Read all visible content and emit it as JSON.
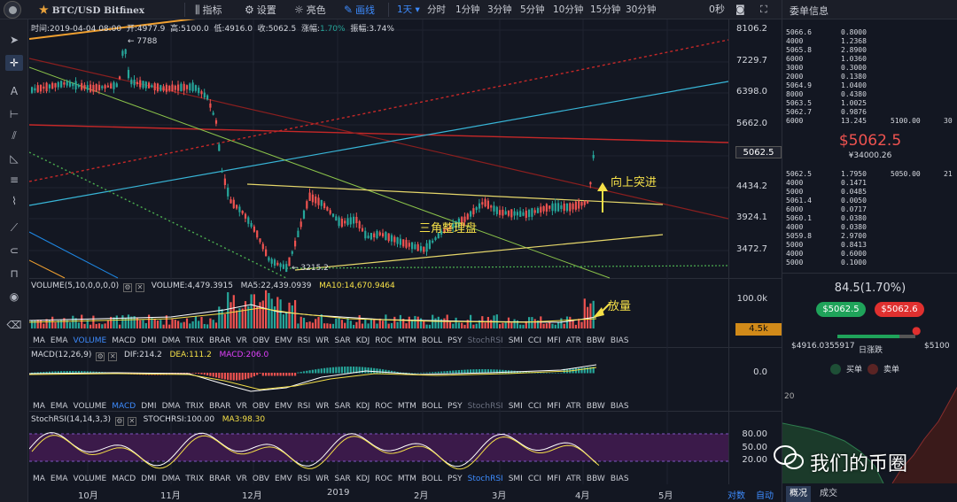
{
  "topbar": {
    "symbol": "BTC/USD Bitfinex",
    "indicators_label": "指标",
    "settings_label": "设置",
    "theme_label": "亮色",
    "draw_label": "画线",
    "timeframes": [
      "1天",
      "分时",
      "1分钟",
      "3分钟",
      "5分钟",
      "10分钟",
      "15分钟",
      "30分钟"
    ],
    "countdown": "0秒"
  },
  "orderbook_title": "委单信息",
  "main_info": {
    "time": "时间:2019-04-04 08:00",
    "open": "开:4977.9",
    "high": "高:5100.0",
    "low": "低:4916.0",
    "close": "收:5062.5",
    "change_label": "涨幅:",
    "change_value": "1.70%",
    "amplitude": "振幅:3.74%"
  },
  "price_axis": [
    "8106.2",
    "7229.7",
    "6398.0",
    "5662.0",
    "4434.2",
    "3924.1",
    "3472.7"
  ],
  "current_price_tag": "5062.5",
  "high_marker": "← 7788",
  "low_marker": "← 3215.2",
  "annotations": {
    "breakout": "向上突进",
    "triangle": "三角整理盘",
    "volume_up": "放量"
  },
  "volume": {
    "title": "VOLUME(5,10,0,0,0,0)",
    "value": "VOLUME:4,479.3915",
    "ma5": "MA5:22,439.0939",
    "ma10": "MA10:14,670.9464",
    "axis": "100.0k",
    "tag": "4.5k"
  },
  "macd": {
    "title": "MACD(12,26,9)",
    "dif": "DIF:214.2",
    "dea": "DEA:111.2",
    "macd": "MACD:206.0",
    "axis": "0.0"
  },
  "stochrsi": {
    "title": "StochRSI(14,14,3,3)",
    "value": "STOCHRSI:100.00",
    "ma3": "MA3:98.30",
    "axis": [
      "80.00",
      "50.00",
      "20.00"
    ]
  },
  "indicator_tabs": [
    "MA",
    "EMA",
    "VOLUME",
    "MACD",
    "DMI",
    "DMA",
    "TRIX",
    "BRAR",
    "VR",
    "OBV",
    "EMV",
    "RSI",
    "WR",
    "SAR",
    "KDJ",
    "ROC",
    "MTM",
    "BOLL",
    "PSY",
    "StochRSI",
    "SMI",
    "CCI",
    "MFI",
    "ATR",
    "BBW",
    "BIAS"
  ],
  "months": [
    "10月",
    "11月",
    "12月",
    "2019",
    "2月",
    "3月",
    "4月",
    "5月"
  ],
  "bottom_right": "对数",
  "bottom_auto": "自动",
  "right_panel": {
    "asks": [
      {
        "price": "5066.6",
        "qty": "0.8000"
      },
      {
        "price": "4000",
        "qty": "1.2368"
      },
      {
        "price": "5065.8",
        "qty": "2.8900"
      },
      {
        "price": "6000",
        "qty": "1.0360"
      },
      {
        "price": "3000",
        "qty": "0.3000"
      },
      {
        "price": "2000",
        "qty": "0.1380"
      },
      {
        "price": "5064.9",
        "qty": "1.0400"
      },
      {
        "price": "8000",
        "qty": "0.4380"
      },
      {
        "price": "5063.5",
        "qty": "1.0025"
      },
      {
        "price": "5062.7",
        "qty": "0.9876"
      },
      {
        "price": "6000",
        "qty": "13.245",
        "extra": "5100.00",
        "extra2": "30"
      }
    ],
    "last_price": "$5062.5",
    "last_sub": "¥34000.26",
    "bids": [
      {
        "price": "5062.5",
        "qty": "1.7950",
        "extra": "5050.00",
        "extra2": "21"
      },
      {
        "price": "4000",
        "qty": "0.1471"
      },
      {
        "price": "5000",
        "qty": "0.0485"
      },
      {
        "price": "5061.4",
        "qty": "0.0050"
      },
      {
        "price": "6000",
        "qty": "0.0717"
      },
      {
        "price": "5060.1",
        "qty": "0.0380"
      },
      {
        "price": "4000",
        "qty": "0.0380"
      },
      {
        "price": "5059.8",
        "qty": "2.9700"
      },
      {
        "price": "5000",
        "qty": "0.8413"
      },
      {
        "price": "4000",
        "qty": "0.6000"
      },
      {
        "price": "5000",
        "qty": "0.1000"
      }
    ],
    "change": "84.5(1.70%)",
    "buy_price": "$5062.5",
    "sell_price": "$5062.6",
    "range_low": "$4916.0355917",
    "range_label": "日涨跌",
    "range_high": "$5100",
    "range_position": 0.8,
    "legend_buy": "买单",
    "legend_sell": "卖单",
    "depth_axis": "20",
    "tab_overview": "概况",
    "tab_trades": "成交"
  },
  "watermark": "我们的币圈",
  "colors": {
    "up": "#26a69a",
    "down": "#ef5350",
    "accent": "#3d8bfd",
    "annotation": "#f5e048"
  }
}
